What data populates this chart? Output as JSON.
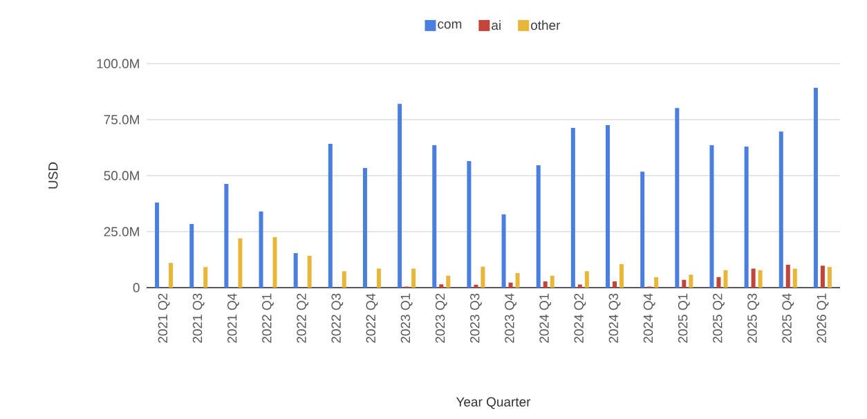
{
  "chart_data": {
    "type": "bar",
    "xlabel": "Year Quarter",
    "ylabel": "USD",
    "categories": [
      "2021 Q2",
      "2021 Q3",
      "2021 Q4",
      "2022 Q1",
      "2022 Q2",
      "2022 Q3",
      "2022 Q4",
      "2023 Q1",
      "2023 Q2",
      "2023 Q3",
      "2023 Q4",
      "2024 Q1",
      "2024 Q2",
      "2024 Q3",
      "2024 Q4",
      "2025 Q1",
      "2025 Q2",
      "2025 Q3",
      "2025 Q4",
      "2026 Q1"
    ],
    "series": [
      {
        "name": "com",
        "color": "#4a7fe0",
        "values": [
          38000000,
          28400000,
          46300000,
          34000000,
          15400000,
          64200000,
          53400000,
          82000000,
          63600000,
          56500000,
          32700000,
          54600000,
          71300000,
          72500000,
          51800000,
          80200000,
          63600000,
          63000000,
          69700000,
          89200000
        ]
      },
      {
        "name": "ai",
        "color": "#c5443a",
        "values": [
          null,
          null,
          null,
          null,
          null,
          null,
          null,
          500000,
          1500000,
          1300000,
          2200000,
          2800000,
          1400000,
          2800000,
          500000,
          3500000,
          4700000,
          8500000,
          10300000,
          9800000
        ]
      },
      {
        "name": "other",
        "color": "#e8b73a",
        "values": [
          11000000,
          9200000,
          22000000,
          22500000,
          14200000,
          7300000,
          8500000,
          8500000,
          5300000,
          9300000,
          6500000,
          5300000,
          7300000,
          10500000,
          4600000,
          5800000,
          7800000,
          7800000,
          8500000,
          9200000
        ]
      }
    ],
    "ylim": [
      0,
      100000000
    ],
    "yticks": [
      {
        "value": 0,
        "label": "0"
      },
      {
        "value": 25000000,
        "label": "25.0M"
      },
      {
        "value": 50000000,
        "label": "50.0M"
      },
      {
        "value": 75000000,
        "label": "75.0M"
      },
      {
        "value": 100000000,
        "label": "100.0M"
      }
    ],
    "grid": "y",
    "legend": "top"
  }
}
